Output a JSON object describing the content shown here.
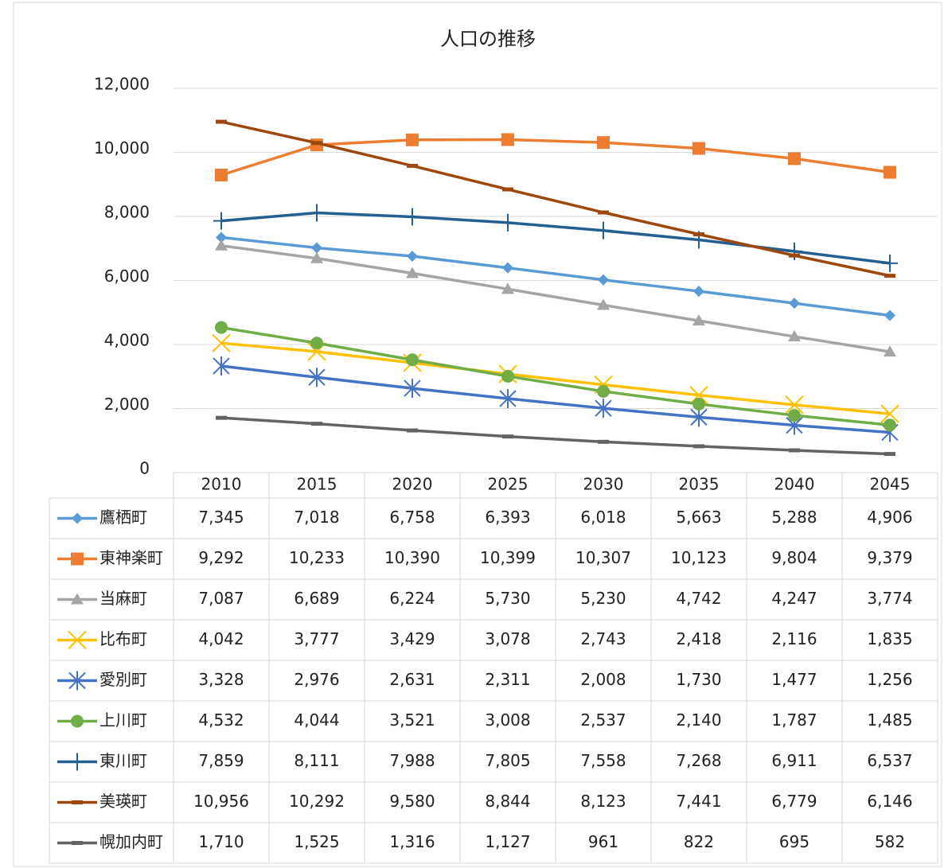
{
  "chart_data": {
    "type": "line",
    "title": "人口の推移",
    "categories": [
      "2010",
      "2015",
      "2020",
      "2025",
      "2030",
      "2035",
      "2040",
      "2045"
    ],
    "ylim": [
      0,
      12000
    ],
    "yticks": [
      0,
      {
        "value": 2000,
        "label": "2,000"
      },
      {
        "value": 4000,
        "label": "4,000"
      },
      {
        "value": 6000,
        "label": "6,000"
      },
      {
        "value": 8000,
        "label": "8,000"
      },
      {
        "value": 10000,
        "label": "10,000"
      },
      {
        "value": 12000,
        "label": "12,000"
      }
    ],
    "grid": true,
    "series": [
      {
        "name": "鷹栖町",
        "color": "#5b9bd5",
        "marker": "diamond",
        "values": [
          7345,
          7018,
          6758,
          6393,
          6018,
          5663,
          5288,
          4906
        ],
        "value_labels": [
          "7,345",
          "7,018",
          "6,758",
          "6,393",
          "6,018",
          "5,663",
          "5,288",
          "4,906"
        ]
      },
      {
        "name": "東神楽町",
        "color": "#ed7d31",
        "marker": "square",
        "values": [
          9292,
          10233,
          10390,
          10399,
          10307,
          10123,
          9804,
          9379
        ],
        "value_labels": [
          "9,292",
          "10,233",
          "10,390",
          "10,399",
          "10,307",
          "10,123",
          "9,804",
          "9,379"
        ]
      },
      {
        "name": "当麻町",
        "color": "#a5a5a5",
        "marker": "triangle",
        "values": [
          7087,
          6689,
          6224,
          5730,
          5230,
          4742,
          4247,
          3774
        ],
        "value_labels": [
          "7,087",
          "6,689",
          "6,224",
          "5,730",
          "5,230",
          "4,742",
          "4,247",
          "3,774"
        ]
      },
      {
        "name": "比布町",
        "color": "#ffc000",
        "marker": "x",
        "values": [
          4042,
          3777,
          3429,
          3078,
          2743,
          2418,
          2116,
          1835
        ],
        "value_labels": [
          "4,042",
          "3,777",
          "3,429",
          "3,078",
          "2,743",
          "2,418",
          "2,116",
          "1,835"
        ]
      },
      {
        "name": "愛別町",
        "color": "#4472c4",
        "marker": "star",
        "values": [
          3328,
          2976,
          2631,
          2311,
          2008,
          1730,
          1477,
          1256
        ],
        "value_labels": [
          "3,328",
          "2,976",
          "2,631",
          "2,311",
          "2,008",
          "1,730",
          "1,477",
          "1,256"
        ]
      },
      {
        "name": "上川町",
        "color": "#70ad47",
        "marker": "circle",
        "values": [
          4532,
          4044,
          3521,
          3008,
          2537,
          2140,
          1787,
          1485
        ],
        "value_labels": [
          "4,532",
          "4,044",
          "3,521",
          "3,008",
          "2,537",
          "2,140",
          "1,787",
          "1,485"
        ]
      },
      {
        "name": "東川町",
        "color": "#255e91",
        "marker": "plus",
        "values": [
          7859,
          8111,
          7988,
          7805,
          7558,
          7268,
          6911,
          6537
        ],
        "value_labels": [
          "7,859",
          "8,111",
          "7,988",
          "7,805",
          "7,558",
          "7,268",
          "6,911",
          "6,537"
        ]
      },
      {
        "name": "美瑛町",
        "color": "#9e480e",
        "marker": "dash",
        "values": [
          10956,
          10292,
          9580,
          8844,
          8123,
          7441,
          6779,
          6146
        ],
        "value_labels": [
          "10,956",
          "10,292",
          "9,580",
          "8,844",
          "8,123",
          "7,441",
          "6,779",
          "6,146"
        ]
      },
      {
        "name": "幌加内町",
        "color": "#636363",
        "marker": "dash",
        "values": [
          1710,
          1525,
          1316,
          1127,
          961,
          822,
          695,
          582
        ],
        "value_labels": [
          "1,710",
          "1,525",
          "1,316",
          "1,127",
          "961",
          "822",
          "695",
          "582"
        ]
      }
    ]
  }
}
